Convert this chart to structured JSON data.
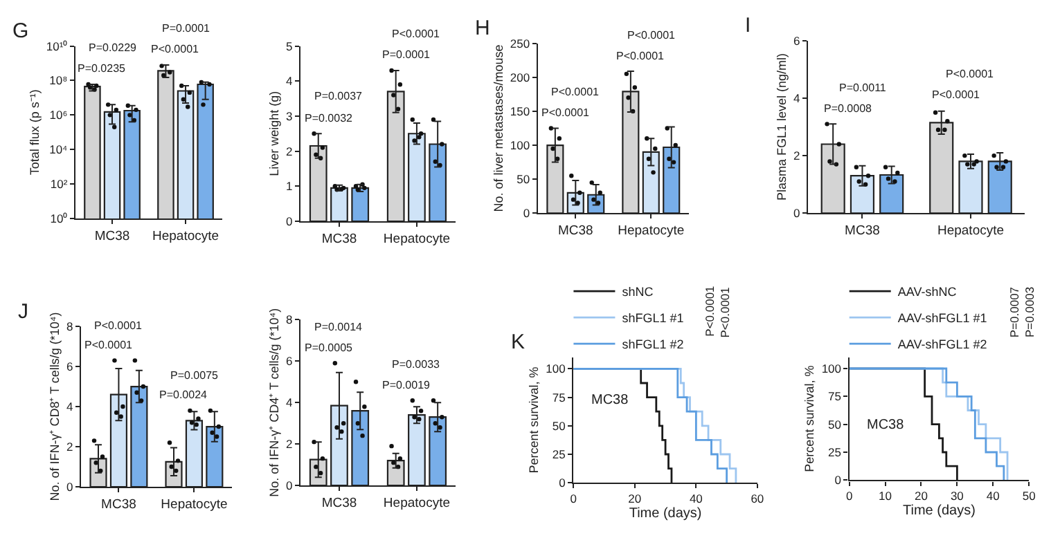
{
  "chart_data": [
    {
      "type": "bar",
      "title": "G",
      "ylabel": "Total flux (p s⁻¹)",
      "log": true,
      "categories": [
        "MC38",
        "Hepatocyte"
      ],
      "ylim": [
        1,
        10000000000
      ],
      "yticks": [
        {
          "value": 1,
          "label": "10⁰"
        },
        {
          "value": 100,
          "label": "10²"
        },
        {
          "value": 10000,
          "label": "10⁴"
        },
        {
          "value": 1000000,
          "label": "10⁶"
        },
        {
          "value": 100000000,
          "label": "10⁸"
        },
        {
          "value": 10000000000,
          "label": "10¹⁰"
        }
      ],
      "series": [
        {
          "color": "#d4d4d4",
          "values": [
            45000000,
            370000000
          ],
          "errors": [
            [
              25000000,
              60000000
            ],
            [
              150000000,
              800000000
            ]
          ]
        },
        {
          "color": "#cfe3f7",
          "values": [
            1500000,
            25000000
          ],
          "errors": [
            [
              300000,
              4000000
            ],
            [
              5000000,
              50000000
            ]
          ]
        },
        {
          "color": "#78aee9",
          "values": [
            1800000,
            60000000
          ],
          "errors": [
            [
              400000,
              3500000
            ],
            [
              8000000,
              80000000
            ]
          ]
        },
        {
          "type": "scatter",
          "color": "#111111",
          "x": [
            "MC38",
            "MC38",
            "MC38",
            "MC38",
            "Hepatocyte",
            "Hepatocyte",
            "Hepatocyte"
          ],
          "values": [
            60000000,
            50000000,
            40000000,
            30000000,
            700000000,
            300000000,
            200000000
          ]
        },
        {
          "type": "scatter",
          "color": "#111111",
          "x": [
            "MC38",
            "MC38",
            "MC38",
            "MC38",
            "Hepatocyte",
            "Hepatocyte",
            "Hepatocyte",
            "Hepatocyte"
          ],
          "values": [
            4000000,
            2000000,
            1000000,
            200000,
            50000000,
            20000000,
            8000000,
            3000000
          ]
        },
        {
          "type": "scatter",
          "color": "#111111",
          "x": [
            "MC38",
            "MC38",
            "MC38",
            "MC38",
            "Hepatocyte",
            "Hepatocyte",
            "Hepatocyte"
          ],
          "values": [
            3500000,
            2000000,
            1000000,
            500000,
            80000000,
            60000000,
            4000000
          ]
        }
      ],
      "annotations": [
        "P=0.0235",
        "P=0.0229",
        "P<0.0001",
        "P=0.0001"
      ]
    },
    {
      "type": "bar",
      "ylabel": "Liver weight (g)",
      "categories": [
        "MC38",
        "Hepatocyte"
      ],
      "ylim": [
        0,
        5
      ],
      "yticks": [
        0,
        1,
        2,
        3,
        4,
        5
      ],
      "series": [
        {
          "color": "#d4d4d4",
          "values": [
            2.15,
            3.7
          ],
          "errors": [
            0.35,
            0.6
          ]
        },
        {
          "color": "#cfe3f7",
          "values": [
            0.95,
            2.5
          ],
          "errors": [
            0.08,
            0.3
          ]
        },
        {
          "color": "#78aee9",
          "values": [
            0.95,
            2.2
          ],
          "errors": [
            0.1,
            0.65
          ]
        },
        {
          "type": "scatter",
          "color": "#111111",
          "x": [
            "MC38",
            "MC38",
            "MC38",
            "MC38",
            "Hepatocyte",
            "Hepatocyte",
            "Hepatocyte",
            "Hepatocyte"
          ],
          "values": [
            2.5,
            2.1,
            1.9,
            1.8,
            4.3,
            3.9,
            3.6,
            3.2
          ]
        },
        {
          "type": "scatter",
          "color": "#111111",
          "x": [
            "MC38",
            "MC38",
            "MC38",
            "MC38",
            "Hepatocyte",
            "Hepatocyte",
            "Hepatocyte",
            "Hepatocyte"
          ],
          "values": [
            1.0,
            0.95,
            0.9,
            0.92,
            2.9,
            2.5,
            2.3,
            2.4
          ]
        },
        {
          "type": "scatter",
          "color": "#111111",
          "x": [
            "MC38",
            "MC38",
            "MC38",
            "MC38",
            "Hepatocyte",
            "Hepatocyte",
            "Hepatocyte",
            "Hepatocyte"
          ],
          "values": [
            1.0,
            0.95,
            0.9,
            1.05,
            2.9,
            2.2,
            1.7,
            1.6
          ]
        }
      ],
      "annotations": [
        "P=0.0032",
        "P=0.0037",
        "P=0.0001",
        "P<0.0001"
      ]
    },
    {
      "type": "bar",
      "title": "H",
      "ylabel": "No. of liver metastases/mouse",
      "categories": [
        "MC38",
        "Hepatocyte"
      ],
      "ylim": [
        0,
        250
      ],
      "yticks": [
        0,
        50,
        100,
        150,
        200,
        250
      ],
      "series": [
        {
          "color": "#d4d4d4",
          "values": [
            100,
            179
          ],
          "errors": [
            25,
            30
          ]
        },
        {
          "color": "#cfe3f7",
          "values": [
            30,
            90
          ],
          "errors": [
            18,
            20
          ]
        },
        {
          "color": "#78aee9",
          "values": [
            27,
            97
          ],
          "errors": [
            15,
            30
          ]
        },
        {
          "type": "scatter",
          "color": "#111111",
          "x": [
            "MC38",
            "MC38",
            "MC38",
            "MC38",
            "Hepatocyte",
            "Hepatocyte",
            "Hepatocyte",
            "Hepatocyte"
          ],
          "values": [
            125,
            110,
            95,
            80,
            205,
            185,
            170,
            150
          ]
        },
        {
          "type": "scatter",
          "color": "#111111",
          "x": [
            "MC38",
            "MC38",
            "MC38",
            "MC38",
            "Hepatocyte",
            "Hepatocyte",
            "Hepatocyte",
            "Hepatocyte"
          ],
          "values": [
            55,
            30,
            20,
            15,
            110,
            95,
            80,
            60
          ]
        },
        {
          "type": "scatter",
          "color": "#111111",
          "x": [
            "MC38",
            "MC38",
            "MC38",
            "MC38",
            "Hepatocyte",
            "Hepatocyte",
            "Hepatocyte",
            "Hepatocyte"
          ],
          "values": [
            45,
            30,
            20,
            15,
            125,
            100,
            80,
            75
          ]
        }
      ],
      "annotations": [
        "P<0.0001",
        "P<0.0001",
        "P<0.0001",
        "P<0.0001"
      ]
    },
    {
      "type": "bar",
      "title": "I",
      "ylabel": "Plasma FGL1 level (ng/ml)",
      "categories": [
        "MC38",
        "Hepatocyte"
      ],
      "ylim": [
        0,
        6
      ],
      "yticks": [
        0,
        2,
        4,
        6
      ],
      "series": [
        {
          "color": "#d4d4d4",
          "values": [
            2.4,
            3.15
          ],
          "errors": [
            0.7,
            0.4
          ]
        },
        {
          "color": "#cfe3f7",
          "values": [
            1.3,
            1.8
          ],
          "errors": [
            0.35,
            0.25
          ]
        },
        {
          "color": "#78aee9",
          "values": [
            1.33,
            1.8
          ],
          "errors": [
            0.3,
            0.3
          ]
        },
        {
          "type": "scatter",
          "color": "#111111",
          "x": [
            "MC38",
            "MC38",
            "MC38",
            "MC38",
            "Hepatocyte",
            "Hepatocyte",
            "Hepatocyte",
            "Hepatocyte"
          ],
          "values": [
            3.1,
            2.4,
            1.8,
            1.7,
            3.5,
            3.2,
            2.9,
            2.9
          ]
        },
        {
          "type": "scatter",
          "color": "#111111",
          "x": [
            "MC38",
            "MC38",
            "MC38",
            "MC38",
            "Hepatocyte",
            "Hepatocyte",
            "Hepatocyte",
            "Hepatocyte"
          ],
          "values": [
            1.6,
            1.3,
            1.1,
            1.0,
            2.0,
            1.8,
            1.7,
            1.7
          ]
        },
        {
          "type": "scatter",
          "color": "#111111",
          "x": [
            "MC38",
            "MC38",
            "MC38",
            "MC38",
            "Hepatocyte",
            "Hepatocyte",
            "Hepatocyte",
            "Hepatocyte"
          ],
          "values": [
            1.6,
            1.4,
            1.2,
            1.1,
            2.0,
            1.8,
            1.6,
            1.6
          ]
        }
      ],
      "annotations": [
        "P=0.0008",
        "P=0.0011",
        "P<0.0001",
        "P<0.0001"
      ]
    },
    {
      "type": "bar",
      "title": "J",
      "ylabel": "No. of IFN-γ⁺ CD8⁺ T cells/g (*10⁴)",
      "categories": [
        "MC38",
        "Hepatocyte"
      ],
      "ylim": [
        0,
        8
      ],
      "yticks": [
        0,
        2,
        4,
        6,
        8
      ],
      "series": [
        {
          "color": "#d4d4d4",
          "values": [
            1.4,
            1.25
          ],
          "errors": [
            0.7,
            0.7
          ]
        },
        {
          "color": "#cfe3f7",
          "values": [
            4.6,
            3.3
          ],
          "errors": [
            1.3,
            0.45
          ]
        },
        {
          "color": "#78aee9",
          "values": [
            5.0,
            3.0
          ],
          "errors": [
            0.8,
            0.75
          ]
        },
        {
          "type": "scatter",
          "color": "#111111",
          "x": [
            "MC38",
            "MC38",
            "MC38",
            "MC38",
            "Hepatocyte",
            "Hepatocyte",
            "Hepatocyte",
            "Hepatocyte"
          ],
          "values": [
            2.3,
            1.5,
            1.2,
            0.8,
            2.2,
            1.3,
            1.0,
            0.8
          ]
        },
        {
          "type": "scatter",
          "color": "#111111",
          "x": [
            "MC38",
            "MC38",
            "MC38",
            "MC38",
            "Hepatocyte",
            "Hepatocyte",
            "Hepatocyte",
            "Hepatocyte"
          ],
          "values": [
            6.3,
            4.0,
            3.7,
            3.5,
            3.8,
            3.4,
            3.2,
            3.1
          ]
        },
        {
          "type": "scatter",
          "color": "#111111",
          "x": [
            "MC38",
            "MC38",
            "MC38",
            "MC38",
            "Hepatocyte",
            "Hepatocyte",
            "Hepatocyte",
            "Hepatocyte"
          ],
          "values": [
            6.3,
            5.0,
            4.7,
            4.3,
            3.8,
            3.0,
            2.7,
            2.5
          ]
        }
      ],
      "annotations": [
        "P<0.0001",
        "P<0.0001",
        "P=0.0024",
        "P=0.0075"
      ]
    },
    {
      "type": "bar",
      "ylabel": "No. of IFN-γ⁺ CD4⁺ T cells/g (*10⁴)",
      "categories": [
        "MC38",
        "Hepatocyte"
      ],
      "ylim": [
        0,
        8
      ],
      "yticks": [
        0,
        2,
        4,
        6,
        8
      ],
      "series": [
        {
          "color": "#d4d4d4",
          "values": [
            1.25,
            1.2
          ],
          "errors": [
            0.85,
            0.35
          ]
        },
        {
          "color": "#cfe3f7",
          "values": [
            3.85,
            3.4
          ],
          "errors": [
            1.6,
            0.4
          ]
        },
        {
          "color": "#78aee9",
          "values": [
            3.6,
            3.3
          ],
          "errors": [
            0.9,
            0.7
          ]
        },
        {
          "type": "scatter",
          "color": "#111111",
          "x": [
            "MC38",
            "MC38",
            "MC38",
            "MC38",
            "Hepatocyte",
            "Hepatocyte",
            "Hepatocyte",
            "Hepatocyte"
          ],
          "values": [
            2.1,
            1.3,
            0.9,
            0.6,
            1.9,
            1.3,
            1.1,
            0.9
          ]
        },
        {
          "type": "scatter",
          "color": "#111111",
          "x": [
            "MC38",
            "MC38",
            "MC38",
            "MC38",
            "Hepatocyte",
            "Hepatocyte",
            "Hepatocyte",
            "Hepatocyte"
          ],
          "values": [
            5.9,
            3.0,
            2.8,
            2.6,
            4.1,
            3.6,
            3.3,
            3.2
          ]
        },
        {
          "type": "scatter",
          "color": "#111111",
          "x": [
            "MC38",
            "MC38",
            "MC38",
            "MC38",
            "Hepatocyte",
            "Hepatocyte",
            "Hepatocyte",
            "Hepatocyte"
          ],
          "values": [
            5.0,
            3.8,
            3.0,
            2.4,
            4.1,
            3.3,
            3.0,
            2.8
          ]
        }
      ],
      "annotations": [
        "P=0.0005",
        "P=0.0014",
        "P=0.0019",
        "P=0.0033"
      ]
    },
    {
      "type": "step",
      "title": "K",
      "xlabel": "Time (days)",
      "ylabel": "Percent survival, %",
      "xlim": [
        0,
        60
      ],
      "xticks": [
        0,
        20,
        40,
        60
      ],
      "ylim": [
        0,
        110
      ],
      "yticks": [
        0,
        25,
        50,
        75,
        100
      ],
      "legend": "top left",
      "series": [
        {
          "name": "shNC",
          "color": "#1a1a1a",
          "x": [
            0,
            22,
            24,
            27,
            28,
            29,
            30,
            31,
            32
          ],
          "values": [
            100,
            87.5,
            75,
            62.5,
            50,
            37.5,
            25,
            12.5,
            0
          ]
        },
        {
          "name": "shFGL1 #1",
          "color": "#9cc5f0",
          "x": [
            0,
            35,
            36,
            38,
            42,
            44,
            48,
            51,
            53
          ],
          "values": [
            100,
            87.5,
            75,
            62.5,
            50,
            37.5,
            25,
            12.5,
            0
          ]
        },
        {
          "name": "shFGL1 #2",
          "color": "#5b9de0",
          "x": [
            0,
            34,
            37,
            40,
            45,
            47,
            50
          ],
          "values": [
            100,
            75,
            62.5,
            37.5,
            25,
            12.5,
            0
          ]
        }
      ],
      "annotations": [
        "P<0.0001",
        "P<0.0001",
        "MC38"
      ]
    },
    {
      "type": "step",
      "xlabel": "Time (days)",
      "ylabel": "Percent survival, %",
      "xlim": [
        0,
        50
      ],
      "xticks": [
        0,
        10,
        20,
        30,
        40,
        50
      ],
      "ylim": [
        0,
        110
      ],
      "yticks": [
        0,
        25,
        50,
        75,
        100
      ],
      "legend": "top left",
      "series": [
        {
          "name": "AAV-shNC",
          "color": "#1a1a1a",
          "x": [
            0,
            21,
            23,
            25,
            26,
            27,
            30
          ],
          "values": [
            100,
            75,
            50,
            37.5,
            25,
            12.5,
            0
          ]
        },
        {
          "name": "AAV-shFGL1 #1",
          "color": "#9cc5f0",
          "x": [
            0,
            26,
            27,
            33,
            36,
            38,
            42,
            44
          ],
          "values": [
            100,
            87.5,
            75,
            62.5,
            50,
            37.5,
            25,
            0
          ]
        },
        {
          "name": "AAV-shFGL1 #2",
          "color": "#5b9de0",
          "x": [
            0,
            27,
            30,
            34,
            35,
            38,
            41,
            43
          ],
          "values": [
            100,
            87.5,
            75,
            62.5,
            37.5,
            25,
            12.5,
            0
          ]
        }
      ],
      "annotations": [
        "P=0.0007",
        "P=0.0003",
        "MC38"
      ]
    }
  ]
}
